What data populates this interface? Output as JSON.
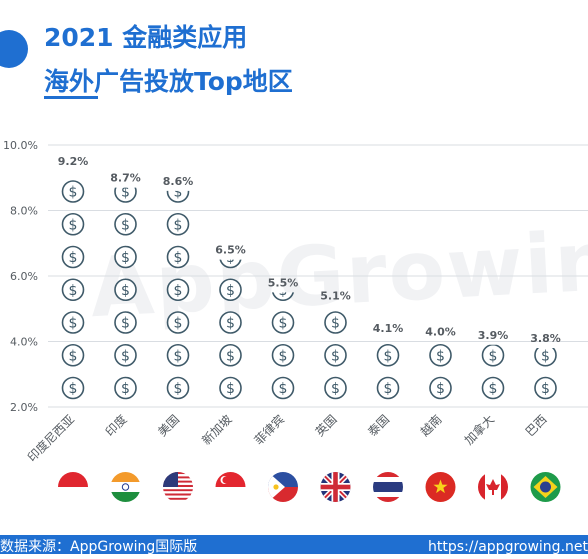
{
  "title": {
    "line1": "2021 金融类应用",
    "line2": "海外广告投放Top地区"
  },
  "watermark": "AppGrowing",
  "footer": {
    "source": "数据来源：AppGrowing国际版",
    "url": "https://appgrowing.net"
  },
  "colors": {
    "accent": "#1f6fd1",
    "icon": "#3f5a69",
    "gridline": "#d9dde2",
    "text": "#555b61"
  },
  "chart_data": {
    "type": "bar",
    "categories": [
      "印度尼西亚",
      "印度",
      "美国",
      "新加坡",
      "菲律宾",
      "英国",
      "泰国",
      "越南",
      "加拿大",
      "巴西"
    ],
    "values": [
      9.2,
      8.7,
      8.6,
      6.5,
      5.5,
      5.1,
      4.1,
      4.0,
      3.9,
      3.8
    ],
    "value_labels": [
      "9.2%",
      "8.7%",
      "8.6%",
      "6.5%",
      "5.5%",
      "5.1%",
      "4.1%",
      "4.0%",
      "3.9%",
      "3.8%"
    ],
    "yticks": [
      "10.0%",
      "8.0%",
      "6.0%",
      "4.0%",
      "2.0%"
    ],
    "ylim": [
      2.0,
      10.0
    ],
    "mark": "dollar-coin-icon stack",
    "flags": [
      "indonesia",
      "india",
      "united-states",
      "singapore",
      "philippines",
      "united-kingdom",
      "thailand",
      "vietnam",
      "canada",
      "brazil"
    ],
    "grid": true
  }
}
